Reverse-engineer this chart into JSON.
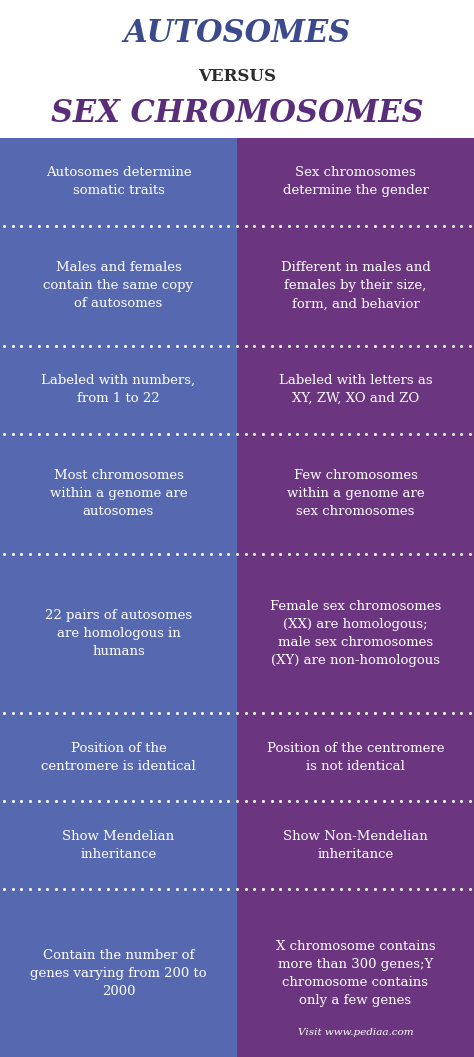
{
  "title1": "AUTOSOMES",
  "title2": "VERSUS",
  "title3": "SEX CHROMOSOMES",
  "title1_color": "#3b4a8c",
  "title2_color": "#2c2c2c",
  "title3_color": "#5a2d7a",
  "left_color": "#5568b0",
  "right_color": "#6b3580",
  "text_color": "#ffffff",
  "divider_color": "#ffffff",
  "bg_color": "#ffffff",
  "rows": [
    {
      "left": "Autosomes determine\nsomatic traits",
      "right": "Sex chromosomes\ndetermine the gender"
    },
    {
      "left": "Males and females\ncontain the same copy\nof autosomes",
      "right": "Different in males and\nfemales by their size,\nform, and behavior"
    },
    {
      "left": "Labeled with numbers,\nfrom 1 to 22",
      "right": "Labeled with letters as\nXY, ZW, XO and ZO"
    },
    {
      "left": "Most chromosomes\nwithin a genome are\nautosomes",
      "right": "Few chromosomes\nwithin a genome are\nsex chromosomes"
    },
    {
      "left": "22 pairs of autosomes\nare homologous in\nhumans",
      "right": "Female sex chromosomes\n(XX) are homologous;\nmale sex chromosomes\n(XY) are non-homologous"
    },
    {
      "left": "Position of the\ncentromere is identical",
      "right": "Position of the centromere\nis not identical"
    },
    {
      "left": "Show Mendelian\ninheritance",
      "right": "Show Non-Mendelian\ninheritance"
    },
    {
      "left": "Contain the number of\ngenes varying from 200 to\n2000",
      "right": "X chromosome contains\nmore than 300 genes;Y\nchromosome contains\nonly a few genes"
    }
  ],
  "watermark": "Visit www.pediaa.com"
}
